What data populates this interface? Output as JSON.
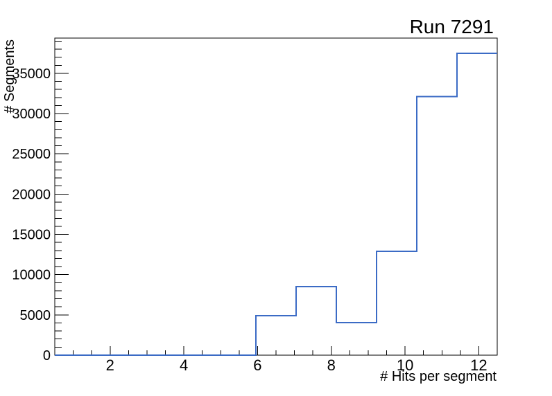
{
  "chart_data": {
    "type": "bar",
    "style": "step-histogram",
    "title": "Run 7291",
    "xlabel": "# Hits per segment",
    "ylabel": "# Segments",
    "line_color": "#3b6bc5",
    "axis_color": "#000000",
    "background_color": "#ffffff",
    "grid": false,
    "legend": null,
    "xlim": [
      0.5,
      12.5
    ],
    "ylim": [
      0,
      39375
    ],
    "x_ticks": [
      {
        "value": 2,
        "label": "2"
      },
      {
        "value": 4,
        "label": "4"
      },
      {
        "value": 6,
        "label": "6"
      },
      {
        "value": 8,
        "label": "8"
      },
      {
        "value": 10,
        "label": "10"
      },
      {
        "value": 12,
        "label": "12"
      }
    ],
    "x_minor_tick_step": 0.5,
    "y_ticks": [
      {
        "value": 0,
        "label": "0"
      },
      {
        "value": 5000,
        "label": "5000"
      },
      {
        "value": 10000,
        "label": "10000"
      },
      {
        "value": 15000,
        "label": "15000"
      },
      {
        "value": 20000,
        "label": "20000"
      },
      {
        "value": 25000,
        "label": "25000"
      },
      {
        "value": 30000,
        "label": "30000"
      },
      {
        "value": 35000,
        "label": "35000"
      }
    ],
    "y_major_tick_step": 5000,
    "y_minor_tick_step": 1000,
    "bin_edges": [
      0.5,
      1.591,
      2.682,
      3.773,
      4.864,
      5.955,
      7.045,
      8.136,
      9.227,
      10.318,
      11.409,
      12.5
    ],
    "counts": [
      0,
      0,
      0,
      0,
      0,
      4900,
      8500,
      4050,
      12900,
      32100,
      37500
    ]
  }
}
